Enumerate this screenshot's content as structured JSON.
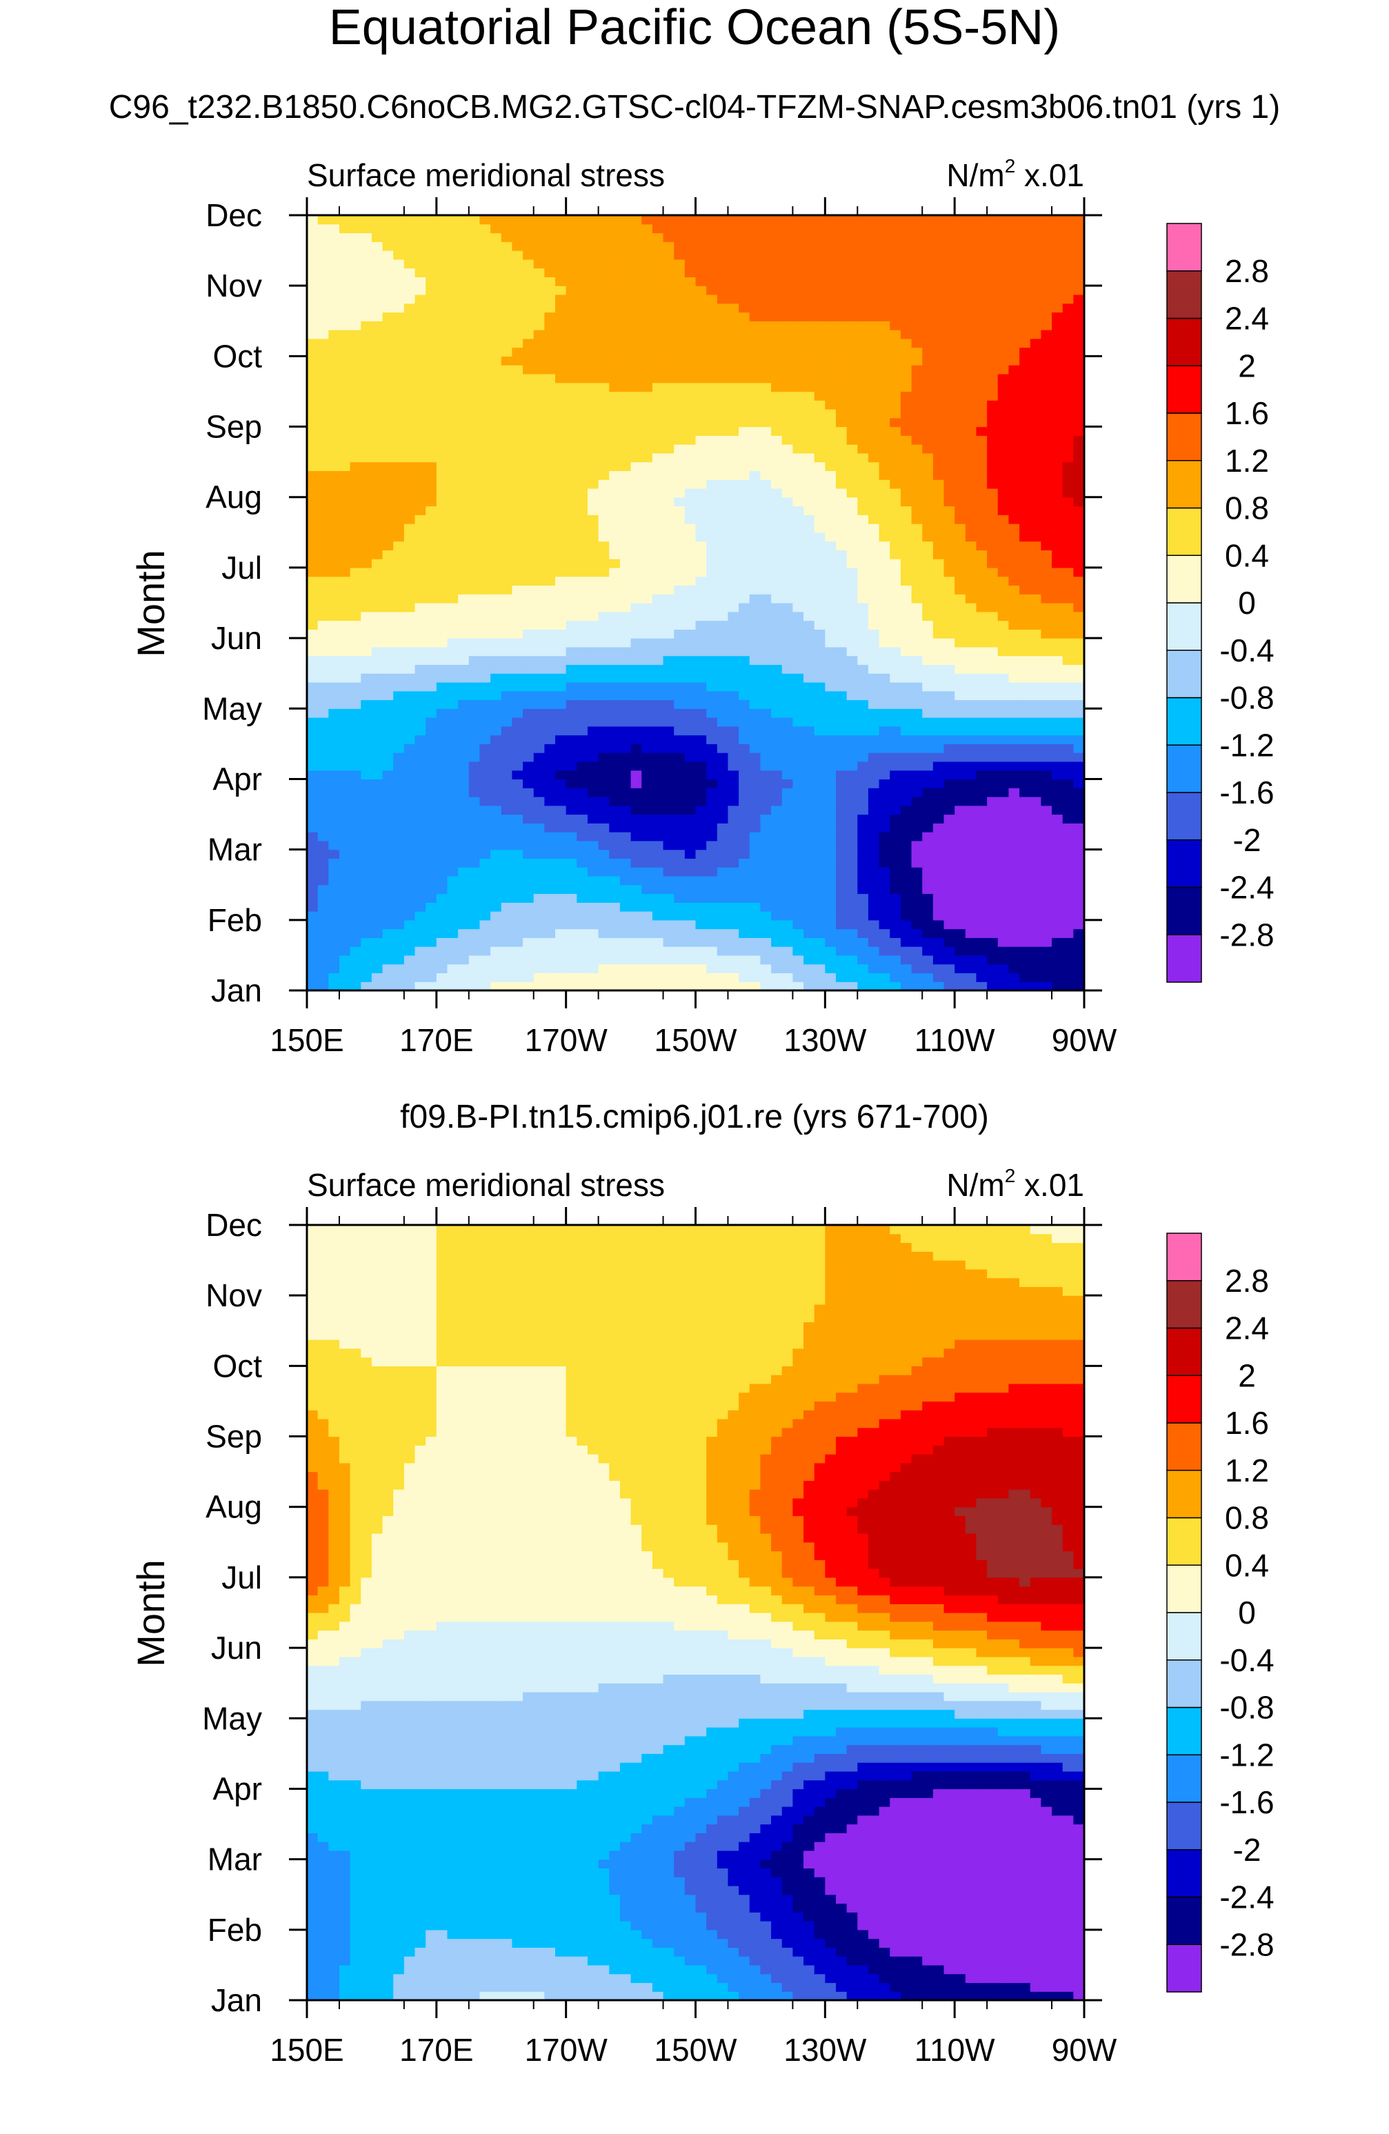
{
  "figure": {
    "title": "Equatorial Pacific Ocean (5S-5N)"
  },
  "colors": {
    "levels": [
      "#8f27ee",
      "#00008b",
      "#0000cd",
      "#3d5fe0",
      "#1e90ff",
      "#00bfff",
      "#a0cdfa",
      "#d6f0fc",
      "#fffacd",
      "#fde038",
      "#ffa500",
      "#ff6600",
      "#ff0000",
      "#cd0000",
      "#9e2a2a",
      "#ff69b4"
    ]
  },
  "chart_data": [
    {
      "type": "heatmap",
      "subtitle": "C96_t232.B1850.C6noCB.MG2.GTSC-cl04-TFZM-SNAP.cesm3b06.tn01 (yrs 1)",
      "left_label": "Surface meridional stress",
      "right_label_prefix": "N/m",
      "right_label_sup": "2",
      "right_label_suffix": " x.01",
      "xlabel": "",
      "ylabel": "Month",
      "xlim": [
        150,
        270
      ],
      "x_units": "degrees east",
      "x_ticks": [
        "150E",
        "170E",
        "170W",
        "150W",
        "130W",
        "110W",
        "90W"
      ],
      "y_ticks": [
        "Jan",
        "Feb",
        "Mar",
        "Apr",
        "May",
        "Jun",
        "Jul",
        "Aug",
        "Sep",
        "Oct",
        "Nov",
        "Dec"
      ],
      "legend_labels": [
        "-2.8",
        "-2.4",
        "-2",
        "-1.6",
        "-1.2",
        "-0.8",
        "-0.4",
        "0",
        "0.4",
        "0.8",
        "1.2",
        "1.6",
        "2",
        "2.4",
        "2.8"
      ],
      "legend_position": "right",
      "longitudes": [
        150,
        160,
        170,
        180,
        190,
        200,
        210,
        220,
        230,
        240,
        250,
        260,
        270
      ],
      "months": [
        "Jan",
        "Feb",
        "Mar",
        "Apr",
        "May",
        "Jun",
        "Jul",
        "Aug",
        "Sep",
        "Oct",
        "Nov",
        "Dec"
      ],
      "values": [
        [
          -1.4,
          -0.6,
          -0.2,
          0.1,
          0.2,
          0.3,
          0.5,
          0.1,
          -0.5,
          -1.0,
          -1.6,
          -2.2,
          -2.5
        ],
        [
          -1.6,
          -1.4,
          -1.1,
          -0.7,
          -0.5,
          -0.6,
          -0.9,
          -1.1,
          -1.5,
          -2.2,
          -3.0,
          -3.2,
          -2.8
        ],
        [
          -1.7,
          -1.5,
          -1.4,
          -1.2,
          -1.3,
          -1.8,
          -2.1,
          -1.5,
          -1.5,
          -2.6,
          -3.3,
          -3.4,
          -3.0
        ],
        [
          -1.3,
          -1.2,
          -1.4,
          -1.9,
          -2.5,
          -2.9,
          -2.7,
          -1.7,
          -1.5,
          -2.1,
          -2.4,
          -2.7,
          -2.3
        ],
        [
          -0.7,
          -0.9,
          -1.2,
          -1.5,
          -1.7,
          -1.8,
          -1.6,
          -1.2,
          -1.0,
          -0.8,
          -0.6,
          -0.5,
          -0.6
        ],
        [
          0.3,
          0.2,
          0.1,
          0.0,
          -0.1,
          -0.3,
          -0.5,
          -0.6,
          -0.4,
          0.1,
          0.5,
          0.7,
          0.9
        ],
        [
          0.9,
          0.8,
          0.7,
          0.6,
          0.5,
          0.4,
          0.1,
          -0.3,
          -0.2,
          0.3,
          0.9,
          1.4,
          1.7
        ],
        [
          0.9,
          0.9,
          0.8,
          0.7,
          0.5,
          0.2,
          -0.1,
          -0.2,
          0.2,
          0.7,
          1.3,
          1.8,
          2.1
        ],
        [
          0.6,
          0.7,
          0.8,
          0.7,
          0.6,
          0.7,
          0.5,
          0.4,
          0.7,
          1.2,
          1.4,
          1.9,
          2.0
        ],
        [
          0.5,
          0.6,
          0.7,
          0.8,
          0.9,
          0.9,
          1.0,
          1.1,
          1.0,
          1.1,
          1.3,
          1.6,
          1.7
        ],
        [
          0.1,
          0.2,
          0.4,
          0.6,
          0.8,
          1.0,
          1.2,
          1.3,
          1.4,
          1.3,
          1.4,
          1.5,
          1.6
        ],
        [
          0.4,
          0.5,
          0.7,
          0.9,
          1.1,
          1.2,
          1.3,
          1.5,
          1.6,
          1.5,
          1.4,
          1.3,
          1.2
        ]
      ]
    },
    {
      "type": "heatmap",
      "subtitle": "f09.B-PI.tn15.cmip6.j01.re (yrs 671-700)",
      "left_label": "Surface meridional stress",
      "right_label_prefix": "N/m",
      "right_label_sup": "2",
      "right_label_suffix": " x.01",
      "xlabel": "",
      "ylabel": "Month",
      "xlim": [
        150,
        270
      ],
      "x_units": "degrees east",
      "x_ticks": [
        "150E",
        "170E",
        "170W",
        "150W",
        "130W",
        "110W",
        "90W"
      ],
      "y_ticks": [
        "Jan",
        "Feb",
        "Mar",
        "Apr",
        "May",
        "Jun",
        "Jul",
        "Aug",
        "Sep",
        "Oct",
        "Nov",
        "Dec"
      ],
      "legend_labels": [
        "-2.8",
        "-2.4",
        "-2",
        "-1.6",
        "-1.2",
        "-0.8",
        "-0.4",
        "0",
        "0.4",
        "0.8",
        "1.2",
        "1.6",
        "2",
        "2.4",
        "2.8"
      ],
      "legend_position": "right",
      "longitudes": [
        150,
        160,
        170,
        180,
        190,
        200,
        210,
        220,
        230,
        240,
        250,
        260,
        270
      ],
      "months": [
        "Jan",
        "Feb",
        "Mar",
        "Apr",
        "May",
        "Jun",
        "Jul",
        "Aug",
        "Sep",
        "Oct",
        "Nov",
        "Dec"
      ],
      "values": [
        [
          -1.5,
          -0.9,
          -0.5,
          -0.3,
          -0.4,
          -0.6,
          -0.9,
          -1.3,
          -1.8,
          -2.3,
          -2.6,
          -2.7,
          -2.8
        ],
        [
          -1.6,
          -1.0,
          -0.8,
          -0.9,
          -1.0,
          -1.2,
          -1.5,
          -1.9,
          -2.5,
          -3.0,
          -3.2,
          -3.2,
          -3.0
        ],
        [
          -1.4,
          -1.1,
          -1.1,
          -1.1,
          -1.1,
          -1.3,
          -1.8,
          -2.4,
          -3.0,
          -3.3,
          -3.4,
          -3.4,
          -3.0
        ],
        [
          -0.9,
          -0.8,
          -0.8,
          -0.8,
          -0.8,
          -0.9,
          -1.1,
          -1.5,
          -2.3,
          -2.7,
          -2.8,
          -2.8,
          -2.5
        ],
        [
          -0.5,
          -0.5,
          -0.5,
          -0.5,
          -0.6,
          -0.6,
          -0.7,
          -0.8,
          -0.9,
          -1.0,
          -0.9,
          -0.8,
          -0.7
        ],
        [
          0.2,
          0.0,
          -0.1,
          -0.1,
          -0.1,
          -0.2,
          -0.2,
          -0.1,
          0.2,
          0.5,
          0.8,
          1.1,
          1.4
        ],
        [
          1.7,
          0.3,
          0.2,
          0.2,
          0.2,
          0.3,
          0.5,
          0.9,
          1.6,
          2.1,
          2.3,
          2.5,
          2.4
        ],
        [
          1.6,
          0.5,
          0.2,
          0.1,
          0.2,
          0.4,
          0.7,
          1.3,
          1.9,
          2.2,
          2.4,
          2.5,
          2.3
        ],
        [
          1.0,
          0.5,
          0.4,
          0.4,
          0.4,
          0.5,
          0.7,
          1.1,
          1.5,
          1.8,
          2.0,
          2.1,
          2.0
        ],
        [
          0.6,
          0.4,
          0.4,
          0.4,
          0.4,
          0.4,
          0.5,
          0.7,
          0.9,
          1.1,
          1.3,
          1.4,
          1.5
        ],
        [
          0.1,
          0.3,
          0.4,
          0.5,
          0.5,
          0.6,
          0.6,
          0.7,
          0.8,
          0.9,
          1.0,
          0.9,
          0.8
        ],
        [
          0.0,
          0.3,
          0.4,
          0.5,
          0.6,
          0.6,
          0.7,
          0.8,
          0.8,
          0.8,
          0.6,
          0.4,
          0.2
        ]
      ]
    }
  ]
}
